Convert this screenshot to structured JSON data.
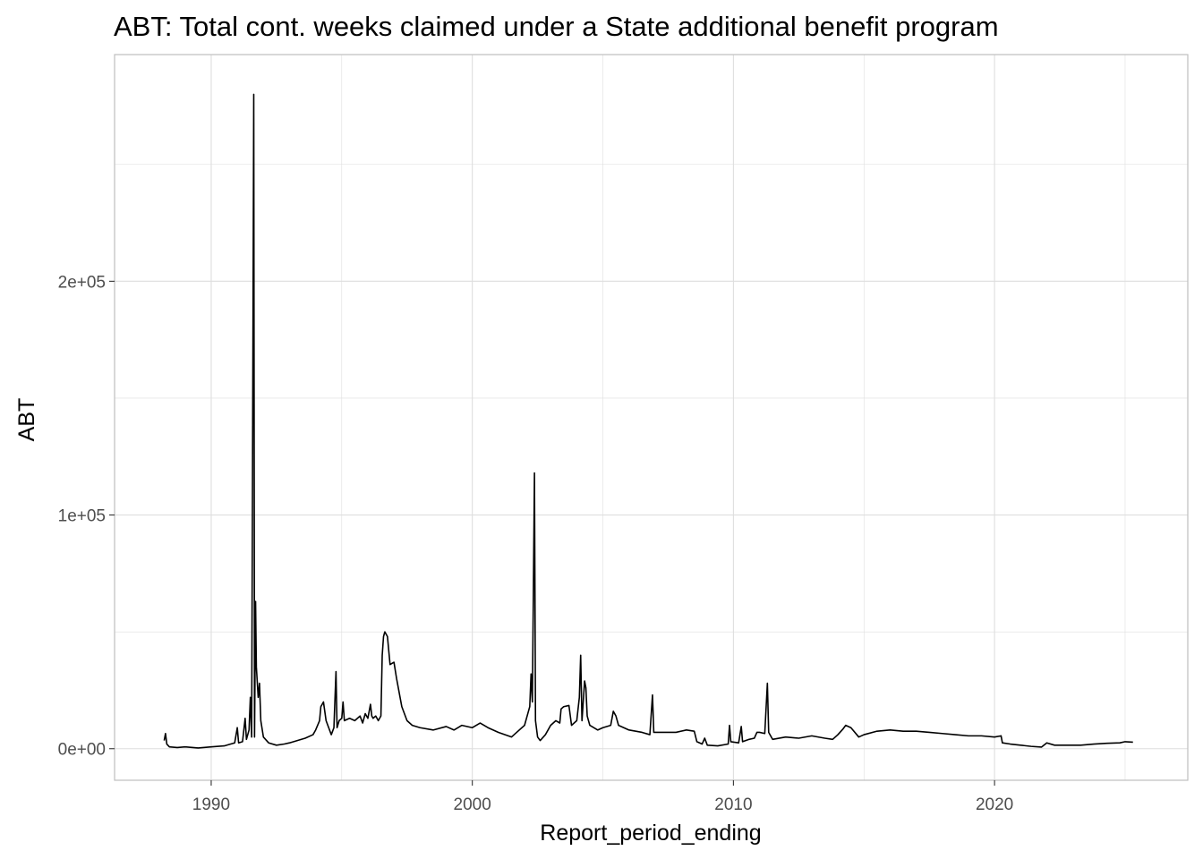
{
  "chart_data": {
    "type": "line",
    "title": "ABT: Total cont. weeks claimed under a State additional benefit program",
    "xlabel": "Report_period_ending",
    "ylabel": "ABT",
    "x_ticks": [
      "1990",
      "2000",
      "2010",
      "2020"
    ],
    "y_ticks": [
      "0e+00",
      "1e+05",
      "2e+05"
    ],
    "xlim": [
      1986.3,
      2027.4
    ],
    "ylim": [
      -13500,
      297000
    ],
    "grid": true,
    "colors": {
      "line": "#000000",
      "grid": "#dedede",
      "panel_border": "#bfbfbf"
    },
    "series": [
      {
        "points": [
          [
            1988.2,
            3500
          ],
          [
            1988.25,
            6500
          ],
          [
            1988.3,
            2000
          ],
          [
            1988.4,
            800
          ],
          [
            1988.7,
            500
          ],
          [
            1989.0,
            800
          ],
          [
            1989.5,
            300
          ],
          [
            1990.0,
            800
          ],
          [
            1990.5,
            1200
          ],
          [
            1990.9,
            2500
          ],
          [
            1991.0,
            9000
          ],
          [
            1991.05,
            2500
          ],
          [
            1991.2,
            3000
          ],
          [
            1991.3,
            13000
          ],
          [
            1991.35,
            4000
          ],
          [
            1991.45,
            8000
          ],
          [
            1991.5,
            22000
          ],
          [
            1991.55,
            5000
          ],
          [
            1991.63,
            280000
          ],
          [
            1991.66,
            5000
          ],
          [
            1991.7,
            63000
          ],
          [
            1991.73,
            35000
          ],
          [
            1991.8,
            22000
          ],
          [
            1991.85,
            28000
          ],
          [
            1991.9,
            12000
          ],
          [
            1992.0,
            5000
          ],
          [
            1992.2,
            2500
          ],
          [
            1992.5,
            1500
          ],
          [
            1992.8,
            2000
          ],
          [
            1993.0,
            2500
          ],
          [
            1993.3,
            3500
          ],
          [
            1993.6,
            4500
          ],
          [
            1993.9,
            6000
          ],
          [
            1994.0,
            8000
          ],
          [
            1994.15,
            12000
          ],
          [
            1994.2,
            18000
          ],
          [
            1994.3,
            20000
          ],
          [
            1994.4,
            12000
          ],
          [
            1994.5,
            9000
          ],
          [
            1994.6,
            6000
          ],
          [
            1994.7,
            9000
          ],
          [
            1994.78,
            33000
          ],
          [
            1994.82,
            9000
          ],
          [
            1994.9,
            12000
          ],
          [
            1995.0,
            13000
          ],
          [
            1995.05,
            20000
          ],
          [
            1995.1,
            12000
          ],
          [
            1995.3,
            13000
          ],
          [
            1995.5,
            12000
          ],
          [
            1995.7,
            14000
          ],
          [
            1995.8,
            11000
          ],
          [
            1995.9,
            15000
          ],
          [
            1996.0,
            13000
          ],
          [
            1996.1,
            19000
          ],
          [
            1996.15,
            14000
          ],
          [
            1996.2,
            13000
          ],
          [
            1996.3,
            14000
          ],
          [
            1996.4,
            12000
          ],
          [
            1996.5,
            14000
          ],
          [
            1996.55,
            40000
          ],
          [
            1996.6,
            48000
          ],
          [
            1996.65,
            50000
          ],
          [
            1996.75,
            48000
          ],
          [
            1996.8,
            42000
          ],
          [
            1996.85,
            36000
          ],
          [
            1997.0,
            37000
          ],
          [
            1997.1,
            30000
          ],
          [
            1997.2,
            24000
          ],
          [
            1997.3,
            18000
          ],
          [
            1997.5,
            12000
          ],
          [
            1997.7,
            10000
          ],
          [
            1998.0,
            9000
          ],
          [
            1998.5,
            8000
          ],
          [
            1999.0,
            9500
          ],
          [
            1999.3,
            8000
          ],
          [
            1999.6,
            10000
          ],
          [
            2000.0,
            9000
          ],
          [
            2000.3,
            11000
          ],
          [
            2000.6,
            9000
          ],
          [
            2001.0,
            7000
          ],
          [
            2001.5,
            5000
          ],
          [
            2001.8,
            8000
          ],
          [
            2002.0,
            10000
          ],
          [
            2002.1,
            14000
          ],
          [
            2002.2,
            18000
          ],
          [
            2002.25,
            32000
          ],
          [
            2002.3,
            20000
          ],
          [
            2002.38,
            118000
          ],
          [
            2002.42,
            12000
          ],
          [
            2002.5,
            5000
          ],
          [
            2002.6,
            3500
          ],
          [
            2002.8,
            6000
          ],
          [
            2003.0,
            10000
          ],
          [
            2003.2,
            12000
          ],
          [
            2003.35,
            11000
          ],
          [
            2003.4,
            17000
          ],
          [
            2003.5,
            18000
          ],
          [
            2003.7,
            18500
          ],
          [
            2003.8,
            10000
          ],
          [
            2004.0,
            12000
          ],
          [
            2004.1,
            22000
          ],
          [
            2004.15,
            40000
          ],
          [
            2004.2,
            12000
          ],
          [
            2004.3,
            29000
          ],
          [
            2004.35,
            26000
          ],
          [
            2004.4,
            14000
          ],
          [
            2004.5,
            10000
          ],
          [
            2004.8,
            8000
          ],
          [
            2005.0,
            9000
          ],
          [
            2005.3,
            10000
          ],
          [
            2005.4,
            16000
          ],
          [
            2005.5,
            14000
          ],
          [
            2005.6,
            10000
          ],
          [
            2006.0,
            8000
          ],
          [
            2006.5,
            7000
          ],
          [
            2006.8,
            6000
          ],
          [
            2006.9,
            23000
          ],
          [
            2006.95,
            7000
          ],
          [
            2007.3,
            7000
          ],
          [
            2007.8,
            7000
          ],
          [
            2008.2,
            8000
          ],
          [
            2008.5,
            7500
          ],
          [
            2008.6,
            3000
          ],
          [
            2008.8,
            2000
          ],
          [
            2008.9,
            4500
          ],
          [
            2009.0,
            1500
          ],
          [
            2009.4,
            1200
          ],
          [
            2009.8,
            2000
          ],
          [
            2009.85,
            10000
          ],
          [
            2009.9,
            3000
          ],
          [
            2010.2,
            2500
          ],
          [
            2010.3,
            9500
          ],
          [
            2010.35,
            3000
          ],
          [
            2010.6,
            4000
          ],
          [
            2010.8,
            4500
          ],
          [
            2010.9,
            7000
          ],
          [
            2011.0,
            7000
          ],
          [
            2011.2,
            6500
          ],
          [
            2011.3,
            28000
          ],
          [
            2011.35,
            7000
          ],
          [
            2011.5,
            4000
          ],
          [
            2012.0,
            5000
          ],
          [
            2012.5,
            4500
          ],
          [
            2013.0,
            5500
          ],
          [
            2013.5,
            4500
          ],
          [
            2013.8,
            4000
          ],
          [
            2014.0,
            6000
          ],
          [
            2014.2,
            8500
          ],
          [
            2014.3,
            10000
          ],
          [
            2014.5,
            9000
          ],
          [
            2014.8,
            5000
          ],
          [
            2015.0,
            6000
          ],
          [
            2015.5,
            7500
          ],
          [
            2016.0,
            8000
          ],
          [
            2016.5,
            7500
          ],
          [
            2017.0,
            7500
          ],
          [
            2017.5,
            7000
          ],
          [
            2018.0,
            6500
          ],
          [
            2018.5,
            6000
          ],
          [
            2019.0,
            5500
          ],
          [
            2019.5,
            5500
          ],
          [
            2020.0,
            5000
          ],
          [
            2020.25,
            5500
          ],
          [
            2020.3,
            2500
          ],
          [
            2020.6,
            2000
          ],
          [
            2021.0,
            1500
          ],
          [
            2021.4,
            1000
          ],
          [
            2021.8,
            700
          ],
          [
            2022.0,
            2500
          ],
          [
            2022.3,
            1500
          ],
          [
            2022.8,
            1500
          ],
          [
            2023.3,
            1500
          ],
          [
            2023.8,
            2000
          ],
          [
            2024.3,
            2300
          ],
          [
            2024.8,
            2500
          ],
          [
            2025.0,
            3000
          ],
          [
            2025.3,
            2800
          ]
        ]
      }
    ]
  }
}
